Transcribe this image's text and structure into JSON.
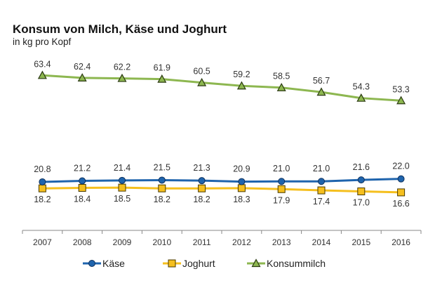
{
  "chart_data": {
    "type": "line",
    "title": "Konsum von Milch, Käse und Joghurt",
    "subtitle": "in kg pro Kopf",
    "xlabel": "",
    "ylabel": "",
    "categories": [
      "2007",
      "2008",
      "2009",
      "2010",
      "2011",
      "2012",
      "2013",
      "2014",
      "2015",
      "2016"
    ],
    "ylim": [
      0,
      70
    ],
    "grid": false,
    "legend": "bottom",
    "series": [
      {
        "name": "Käse",
        "color": "#1f64ad",
        "marker": "circle",
        "labels_position": "above",
        "values": [
          20.8,
          21.2,
          21.4,
          21.5,
          21.3,
          20.9,
          21.0,
          21.0,
          21.6,
          22.0
        ]
      },
      {
        "name": "Joghurt",
        "color": "#f5bf1e",
        "marker": "square",
        "labels_position": "below",
        "values": [
          18.2,
          18.4,
          18.5,
          18.2,
          18.2,
          18.3,
          17.9,
          17.4,
          17.0,
          16.6
        ]
      },
      {
        "name": "Konsummilch",
        "color": "#8db750",
        "marker": "triangle",
        "labels_position": "above",
        "values": [
          63.4,
          62.4,
          62.2,
          61.9,
          60.5,
          59.2,
          58.5,
          56.7,
          54.3,
          53.3
        ]
      }
    ]
  }
}
